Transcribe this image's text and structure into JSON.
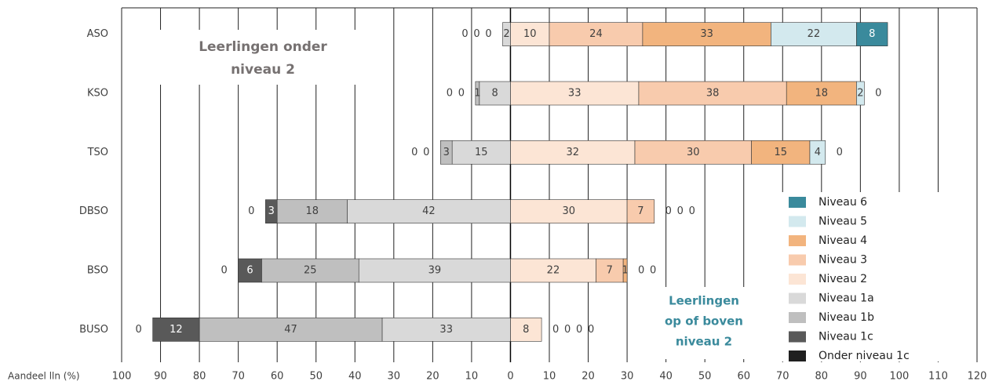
{
  "chart_data": {
    "type": "diverging-bar",
    "x_label": "Aandeel lln (%)",
    "categories": [
      "ASO",
      "KSO",
      "TSO",
      "DBSO",
      "BSO",
      "BUSO"
    ],
    "series": [
      {
        "name": "Niveau 6",
        "color": "#3a8a9c",
        "values": [
          8,
          0,
          0,
          0,
          0,
          0
        ]
      },
      {
        "name": "Niveau 5",
        "color": "#d3e9ee",
        "values": [
          22,
          2,
          4,
          0,
          0,
          0
        ]
      },
      {
        "name": "Niveau 4",
        "color": "#f2b47e",
        "values": [
          33,
          18,
          15,
          0,
          1,
          0
        ]
      },
      {
        "name": "Niveau 3",
        "color": "#f8cbad",
        "values": [
          24,
          38,
          30,
          7,
          7,
          0
        ]
      },
      {
        "name": "Niveau 2",
        "color": "#fce5d5",
        "values": [
          10,
          33,
          32,
          30,
          22,
          8
        ]
      },
      {
        "name": "Niveau 1a",
        "color": "#d9d9d9",
        "values": [
          -2,
          -8,
          -15,
          -42,
          -39,
          -33
        ],
        "value_labels": [
          "2",
          "8",
          "15",
          "42",
          "39",
          "33"
        ]
      },
      {
        "name": "Niveau 1b",
        "color": "#bfbfbf",
        "values": [
          0,
          -1,
          -3,
          -18,
          -25,
          -47
        ],
        "value_labels": [
          "0",
          "1",
          "3",
          "18",
          "25",
          "47"
        ]
      },
      {
        "name": "Niveau 1c",
        "color": "#595959",
        "values": [
          0,
          0,
          0,
          -3,
          -6,
          -12
        ],
        "value_labels": [
          "0",
          "0",
          "0",
          "3",
          "6",
          "12"
        ]
      },
      {
        "name": "Onder niveau 1c",
        "color": "#1f1f1f",
        "values": [
          0,
          0,
          0,
          0,
          0,
          0
        ],
        "value_labels": [
          "0",
          "0",
          "0",
          "0",
          "0",
          "0"
        ]
      }
    ],
    "xlim": [
      -100,
      120
    ],
    "xticks": [
      {
        "value": -100,
        "label": "100"
      },
      {
        "value": -90,
        "label": "90"
      },
      {
        "value": -80,
        "label": "80"
      },
      {
        "value": -70,
        "label": "70"
      },
      {
        "value": -60,
        "label": "60"
      },
      {
        "value": -50,
        "label": "50"
      },
      {
        "value": -40,
        "label": "40"
      },
      {
        "value": -30,
        "label": "30"
      },
      {
        "value": -20,
        "label": "20"
      },
      {
        "value": -10,
        "label": "10"
      },
      0,
      10,
      20,
      30,
      40,
      50,
      60,
      70,
      80,
      90,
      100,
      110,
      120
    ],
    "annotations": [
      {
        "lines": [
          "Leerlingen onder",
          "niveau 2"
        ]
      },
      {
        "lines": [
          "Leerlingen",
          "op of boven",
          "niveau 2"
        ]
      }
    ],
    "grid": true
  }
}
